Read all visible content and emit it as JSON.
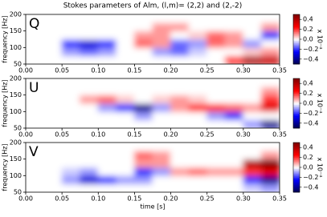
{
  "chart_data": [
    {
      "type": "heatmap",
      "title": "Stokes parameters of Alm, (l,m)= (2,2) and (2,-2)",
      "label": "Q",
      "ylabel": "frequency [Hz]",
      "clabel": "x 10⁻⁴",
      "xlim": [
        0,
        0.35
      ],
      "ylim": [
        50,
        200
      ],
      "xticks": [
        {
          "value": 0,
          "label": "0.00"
        },
        {
          "value": 0.05,
          "label": "0.05"
        },
        {
          "value": 0.1,
          "label": "0.10"
        },
        {
          "value": 0.15,
          "label": "0.15"
        },
        {
          "value": 0.2,
          "label": "0.20"
        },
        {
          "value": 0.25,
          "label": "0.25"
        },
        {
          "value": 0.3,
          "label": "0.30"
        },
        {
          "value": 0.35,
          "label": "0.35"
        }
      ],
      "yticks": [
        50,
        100,
        150,
        200
      ],
      "clim": [
        -0.5,
        0.5
      ],
      "cticks": [
        0.4,
        0.2,
        {
          "value": 0,
          "label": "0.0"
        },
        {
          "value": -0.2,
          "label": "−0.2"
        },
        {
          "value": -0.4,
          "label": "−0.4"
        }
      ],
      "xbins": [
        0,
        0.025,
        0.05,
        0.075,
        0.1,
        0.125,
        0.15,
        0.175,
        0.2,
        0.225,
        0.25,
        0.275,
        0.3,
        0.325,
        0.35
      ],
      "ybins": [
        50,
        75,
        100,
        125,
        150,
        175,
        200
      ],
      "values": [
        [
          0,
          0,
          0,
          0,
          0,
          0,
          0,
          0,
          0,
          0,
          0,
          0.2,
          0.4,
          0.35
        ],
        [
          0,
          0,
          -0.1,
          -0.15,
          -0.1,
          0,
          0,
          -0.1,
          -0.15,
          -0.05,
          0,
          0,
          0.05,
          0.1
        ],
        [
          0,
          0,
          -0.2,
          -0.3,
          -0.2,
          0,
          0.15,
          0.1,
          -0.15,
          -0.1,
          0.15,
          0.1,
          -0.1,
          0
        ],
        [
          0,
          0,
          0,
          0,
          0,
          0,
          0.1,
          0.1,
          0,
          0.05,
          0.15,
          0.1,
          0,
          -0.2
        ],
        [
          0,
          0,
          0,
          0,
          0,
          0,
          0,
          0.1,
          0.1,
          0,
          0,
          0,
          0,
          0.1
        ],
        [
          0,
          0,
          0,
          0,
          0,
          0,
          0,
          0,
          0,
          0,
          0,
          0,
          0,
          0
        ]
      ]
    },
    {
      "type": "heatmap",
      "label": "U",
      "ylabel": "frequency [Hz]",
      "clabel": "x 10⁻⁴",
      "xlim": [
        0,
        0.35
      ],
      "ylim": [
        50,
        200
      ],
      "xticks": [
        {
          "value": 0,
          "label": "0.00"
        },
        {
          "value": 0.05,
          "label": "0.05"
        },
        {
          "value": 0.1,
          "label": "0.10"
        },
        {
          "value": 0.15,
          "label": "0.15"
        },
        {
          "value": 0.2,
          "label": "0.20"
        },
        {
          "value": 0.25,
          "label": "0.25"
        },
        {
          "value": 0.3,
          "label": "0.30"
        },
        {
          "value": 0.35,
          "label": "0.35"
        }
      ],
      "yticks": [
        50,
        100,
        150,
        200
      ],
      "clim": [
        -0.5,
        0.5
      ],
      "cticks": [
        0.4,
        0.2,
        {
          "value": 0,
          "label": "0.0"
        },
        {
          "value": -0.2,
          "label": "−0.2"
        },
        {
          "value": -0.4,
          "label": "−0.4"
        }
      ],
      "xbins": [
        0,
        0.025,
        0.05,
        0.075,
        0.1,
        0.125,
        0.15,
        0.175,
        0.2,
        0.225,
        0.25,
        0.275,
        0.3,
        0.325,
        0.35
      ],
      "ybins": [
        50,
        75,
        100,
        125,
        150,
        175,
        200
      ],
      "values": [
        [
          0,
          0,
          0,
          0,
          0,
          0,
          0,
          0,
          0,
          0,
          0,
          0,
          -0.1,
          -0.4
        ],
        [
          0,
          0,
          0,
          0,
          0,
          0,
          -0.1,
          0,
          0,
          0,
          -0.1,
          -0.2,
          0,
          0
        ],
        [
          0,
          0,
          0,
          0,
          -0.1,
          -0.2,
          -0.4,
          -0.1,
          0.1,
          0.2,
          0.2,
          0.15,
          0.1,
          0.3
        ],
        [
          0,
          0,
          0,
          0.1,
          0.15,
          0.05,
          0,
          0.05,
          0.1,
          0.05,
          0,
          0,
          0,
          0.2
        ],
        [
          0,
          0,
          0,
          0,
          0,
          0,
          0,
          0,
          0,
          0,
          0,
          0,
          0,
          0.1
        ],
        [
          0,
          0,
          0,
          0,
          0,
          0,
          0,
          0,
          0,
          0,
          0,
          0,
          0,
          0
        ]
      ]
    },
    {
      "type": "heatmap",
      "label": "V",
      "ylabel": "frequency [Hz]",
      "xlabel": "time [s]",
      "clabel": "x 10⁻⁴",
      "xlim": [
        0,
        0.35
      ],
      "ylim": [
        50,
        200
      ],
      "xticks": [
        {
          "value": 0,
          "label": "0.00"
        },
        {
          "value": 0.05,
          "label": "0.05"
        },
        {
          "value": 0.1,
          "label": "0.10"
        },
        {
          "value": 0.15,
          "label": "0.15"
        },
        {
          "value": 0.2,
          "label": "0.20"
        },
        {
          "value": 0.25,
          "label": "0.25"
        },
        {
          "value": 0.3,
          "label": "0.30"
        },
        {
          "value": 0.35,
          "label": "0.35"
        }
      ],
      "yticks": [
        50,
        100,
        150,
        200
      ],
      "clim": [
        -0.5,
        0.5
      ],
      "cticks": [
        0.4,
        0.2,
        {
          "value": 0,
          "label": "0.0"
        },
        {
          "value": -0.2,
          "label": "−0.2"
        },
        {
          "value": -0.4,
          "label": "−0.4"
        }
      ],
      "xbins": [
        0,
        0.025,
        0.05,
        0.075,
        0.1,
        0.125,
        0.15,
        0.175,
        0.2,
        0.225,
        0.25,
        0.275,
        0.3,
        0.325,
        0.35
      ],
      "ybins": [
        50,
        75,
        100,
        125,
        150,
        175,
        200
      ],
      "values": [
        [
          0,
          0,
          0,
          0,
          0,
          0,
          0,
          0,
          0,
          0,
          0,
          0,
          -0.05,
          -0.1
        ],
        [
          0,
          0,
          -0.1,
          -0.3,
          -0.2,
          -0.1,
          -0.1,
          0,
          0,
          0,
          0,
          0,
          -0.2,
          -0.4
        ],
        [
          0,
          0,
          -0.05,
          -0.1,
          0,
          0,
          -0.2,
          -0.1,
          0.1,
          0.15,
          0.1,
          0.1,
          0.2,
          0.3
        ],
        [
          0,
          0,
          0,
          0,
          0,
          0,
          0.1,
          0.1,
          0,
          0,
          0,
          0,
          0.4,
          0.55
        ],
        [
          0,
          0,
          0,
          0,
          0,
          0,
          0.15,
          0.1,
          0,
          0,
          0,
          0,
          0,
          0.1
        ],
        [
          0,
          0,
          0,
          0,
          0,
          0,
          0,
          0,
          0,
          0,
          0,
          0,
          0,
          0
        ]
      ]
    }
  ]
}
